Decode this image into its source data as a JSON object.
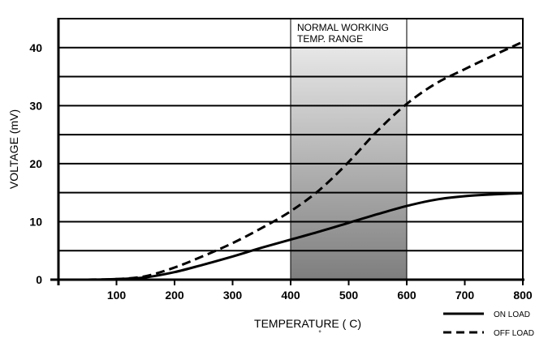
{
  "chart_data": {
    "type": "line",
    "xlabel": "TEMPERATURE (  C)",
    "degree_symbol": "°",
    "ylabel": "VOLTAGE (mV)",
    "xlim": [
      0,
      800
    ],
    "ylim": [
      0,
      45
    ],
    "x_ticks": [
      "100",
      "200",
      "300",
      "400",
      "500",
      "600",
      "700",
      "800"
    ],
    "y_ticks": [
      "0",
      "10",
      "20",
      "30",
      "40"
    ],
    "grid": "horizontal",
    "band": {
      "x_range": [
        400,
        600
      ],
      "label_line1": "NORMAL WORKING",
      "label_line2": "TEMP. RANGE"
    },
    "legend_position": "bottom-right",
    "series": [
      {
        "name": "ON LOAD",
        "style": "solid",
        "x": [
          50,
          100,
          150,
          200,
          250,
          300,
          350,
          400,
          450,
          500,
          550,
          600,
          650,
          700,
          750,
          800
        ],
        "y": [
          0,
          0.1,
          0.4,
          1.3,
          2.6,
          4.0,
          5.5,
          6.9,
          8.3,
          9.8,
          11.3,
          12.7,
          13.8,
          14.4,
          14.7,
          14.9
        ]
      },
      {
        "name": "OFF LOAD",
        "style": "dashed",
        "x": [
          50,
          100,
          150,
          200,
          250,
          300,
          350,
          400,
          450,
          500,
          550,
          600,
          650,
          700,
          750,
          800
        ],
        "y": [
          0,
          0.1,
          0.6,
          2.1,
          4.1,
          6.3,
          8.9,
          11.8,
          15.5,
          20.3,
          25.7,
          30.3,
          33.8,
          36.3,
          38.7,
          41.0
        ]
      }
    ]
  }
}
